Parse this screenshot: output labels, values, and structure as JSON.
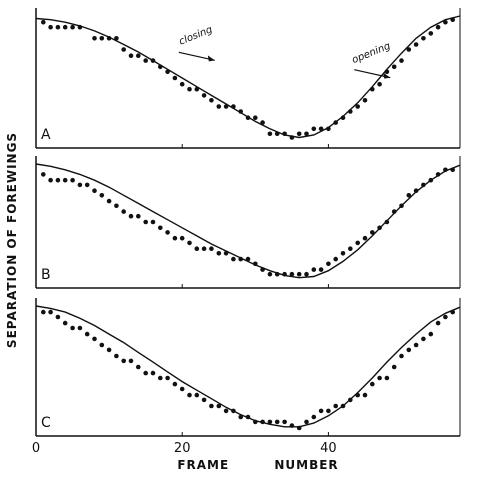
{
  "chart_data": {
    "type": "scatter",
    "xlabel": "FRAME NUMBER",
    "ylabel": "SEPARATION OF FOREWINGS",
    "xlim": [
      0,
      58
    ],
    "ylim": [
      0,
      1
    ],
    "x_ticks": [
      "0",
      "20",
      "40"
    ],
    "x_tick_values": [
      0,
      20,
      40
    ],
    "colors": {
      "ink": "#111111"
    },
    "panels": [
      {
        "label": "A",
        "annotations": [
          {
            "text": "closing",
            "x": 22,
            "y": 0.82
          },
          {
            "text": "opening",
            "x": 46,
            "y": 0.68
          }
        ],
        "curve": {
          "x": [
            0,
            2,
            4,
            6,
            8,
            10,
            12,
            14,
            16,
            18,
            20,
            22,
            24,
            26,
            28,
            30,
            32,
            34,
            36,
            38,
            40,
            42,
            44,
            46,
            48,
            50,
            52,
            54,
            56,
            58
          ],
          "y": [
            0.98,
            0.97,
            0.95,
            0.92,
            0.88,
            0.83,
            0.77,
            0.71,
            0.64,
            0.57,
            0.5,
            0.43,
            0.36,
            0.29,
            0.22,
            0.15,
            0.09,
            0.04,
            0.02,
            0.04,
            0.1,
            0.19,
            0.3,
            0.43,
            0.57,
            0.7,
            0.82,
            0.91,
            0.97,
            1.0
          ]
        },
        "points": {
          "x": [
            1,
            2,
            3,
            4,
            5,
            6,
            8,
            9,
            10,
            11,
            12,
            13,
            14,
            15,
            16,
            17,
            18,
            19,
            20,
            21,
            22,
            23,
            24,
            25,
            26,
            27,
            28,
            29,
            30,
            31,
            32,
            33,
            34,
            35,
            36,
            37,
            38,
            39,
            40,
            41,
            42,
            43,
            44,
            45,
            46,
            47,
            48,
            49,
            50,
            51,
            52,
            53,
            54,
            55,
            56,
            57
          ],
          "y": [
            0.95,
            0.91,
            0.91,
            0.91,
            0.91,
            0.91,
            0.82,
            0.82,
            0.82,
            0.82,
            0.73,
            0.68,
            0.68,
            0.64,
            0.64,
            0.59,
            0.55,
            0.5,
            0.45,
            0.41,
            0.41,
            0.36,
            0.32,
            0.27,
            0.27,
            0.27,
            0.23,
            0.18,
            0.18,
            0.14,
            0.05,
            0.05,
            0.05,
            0.02,
            0.05,
            0.05,
            0.09,
            0.09,
            0.09,
            0.14,
            0.18,
            0.23,
            0.27,
            0.32,
            0.41,
            0.45,
            0.55,
            0.59,
            0.64,
            0.73,
            0.77,
            0.82,
            0.86,
            0.91,
            0.95,
            0.97
          ]
        }
      },
      {
        "label": "B",
        "annotations": [],
        "curve": {
          "x": [
            0,
            2,
            4,
            6,
            8,
            10,
            12,
            14,
            16,
            18,
            20,
            22,
            24,
            26,
            28,
            30,
            32,
            34,
            36,
            38,
            40,
            42,
            44,
            46,
            48,
            50,
            52,
            54,
            56,
            58
          ],
          "y": [
            1.0,
            0.98,
            0.95,
            0.91,
            0.86,
            0.8,
            0.73,
            0.66,
            0.59,
            0.52,
            0.45,
            0.38,
            0.31,
            0.25,
            0.19,
            0.13,
            0.08,
            0.04,
            0.02,
            0.03,
            0.08,
            0.16,
            0.26,
            0.38,
            0.51,
            0.64,
            0.76,
            0.86,
            0.94,
            0.99
          ]
        },
        "points": {
          "x": [
            1,
            2,
            3,
            4,
            5,
            6,
            7,
            8,
            9,
            10,
            11,
            12,
            13,
            14,
            15,
            16,
            17,
            18,
            19,
            20,
            21,
            22,
            23,
            24,
            25,
            26,
            27,
            28,
            29,
            30,
            31,
            32,
            33,
            34,
            35,
            36,
            37,
            38,
            39,
            40,
            41,
            42,
            43,
            44,
            45,
            46,
            47,
            48,
            49,
            50,
            51,
            52,
            53,
            54,
            55,
            56,
            57
          ],
          "y": [
            0.91,
            0.86,
            0.86,
            0.86,
            0.86,
            0.82,
            0.82,
            0.77,
            0.73,
            0.68,
            0.64,
            0.59,
            0.55,
            0.55,
            0.5,
            0.5,
            0.45,
            0.41,
            0.36,
            0.36,
            0.32,
            0.27,
            0.27,
            0.27,
            0.23,
            0.23,
            0.18,
            0.18,
            0.18,
            0.14,
            0.09,
            0.05,
            0.05,
            0.05,
            0.05,
            0.05,
            0.05,
            0.09,
            0.09,
            0.14,
            0.18,
            0.23,
            0.27,
            0.32,
            0.36,
            0.41,
            0.45,
            0.5,
            0.59,
            0.64,
            0.73,
            0.77,
            0.82,
            0.86,
            0.91,
            0.95,
            0.95
          ]
        }
      },
      {
        "label": "C",
        "annotations": [],
        "curve": {
          "x": [
            0,
            2,
            4,
            6,
            8,
            10,
            12,
            14,
            16,
            18,
            20,
            22,
            24,
            26,
            28,
            30,
            32,
            34,
            36,
            38,
            40,
            42,
            44,
            46,
            48,
            50,
            52,
            54,
            56,
            58
          ],
          "y": [
            1.0,
            0.98,
            0.95,
            0.9,
            0.84,
            0.77,
            0.7,
            0.62,
            0.54,
            0.46,
            0.38,
            0.31,
            0.24,
            0.17,
            0.11,
            0.06,
            0.03,
            0.01,
            0.01,
            0.04,
            0.1,
            0.18,
            0.29,
            0.41,
            0.54,
            0.66,
            0.77,
            0.87,
            0.94,
            0.99
          ]
        },
        "points": {
          "x": [
            1,
            2,
            3,
            4,
            5,
            6,
            7,
            8,
            9,
            10,
            11,
            12,
            13,
            14,
            15,
            16,
            17,
            18,
            19,
            20,
            21,
            22,
            23,
            24,
            25,
            26,
            27,
            28,
            29,
            30,
            31,
            32,
            33,
            34,
            35,
            36,
            37,
            38,
            39,
            40,
            41,
            42,
            43,
            44,
            45,
            46,
            47,
            48,
            49,
            50,
            51,
            52,
            53,
            54,
            55,
            56,
            57
          ],
          "y": [
            0.95,
            0.95,
            0.91,
            0.86,
            0.82,
            0.82,
            0.77,
            0.73,
            0.68,
            0.64,
            0.59,
            0.55,
            0.55,
            0.5,
            0.45,
            0.45,
            0.41,
            0.41,
            0.36,
            0.32,
            0.27,
            0.27,
            0.23,
            0.18,
            0.18,
            0.14,
            0.14,
            0.09,
            0.09,
            0.05,
            0.05,
            0.05,
            0.05,
            0.05,
            0.02,
            0.0,
            0.05,
            0.09,
            0.14,
            0.14,
            0.18,
            0.18,
            0.23,
            0.27,
            0.27,
            0.36,
            0.41,
            0.41,
            0.5,
            0.59,
            0.64,
            0.68,
            0.73,
            0.77,
            0.86,
            0.91,
            0.95
          ]
        }
      }
    ]
  }
}
